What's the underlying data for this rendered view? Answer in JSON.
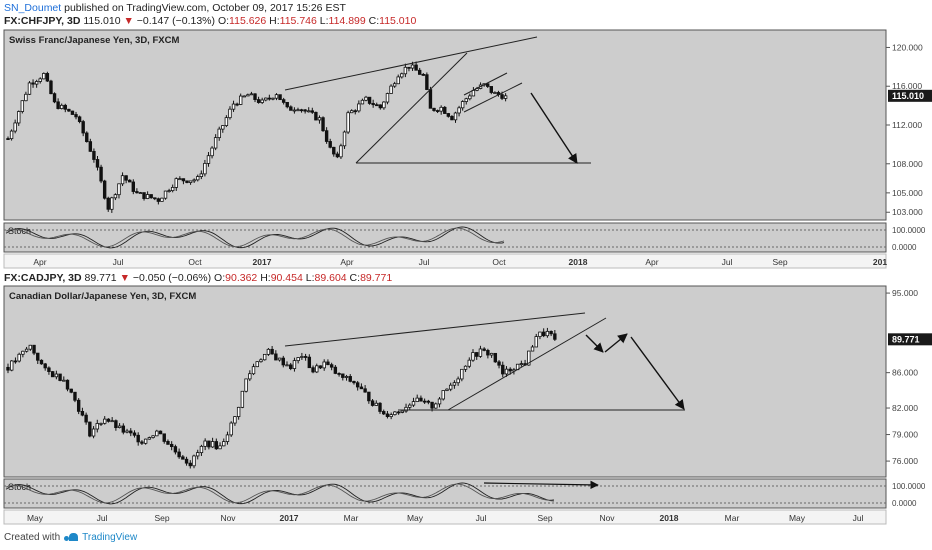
{
  "publish": {
    "user": "SN_Doumet",
    "text": "published on TradingView.com, October 09, 2017 15:26 EST"
  },
  "colors": {
    "plot_bg": "#cdcdcd",
    "candle": "#111111",
    "up_body": "#ffffff",
    "line": "#222222",
    "down_arrow": "#c62828"
  },
  "footer": {
    "created_with": "Created with",
    "brand": "TradingView"
  },
  "chart_data": [
    {
      "type": "candlestick",
      "symbol": "FX:CHFJPY, 3D",
      "last": "115.010",
      "change": "−0.147 (−0.13%)",
      "ohlc": {
        "o": "115.626",
        "h": "115.746",
        "l": "114.899",
        "c": "115.010"
      },
      "title": "Swiss Franc/Japanese Yen, 3D, FXCM",
      "ylim": [
        102.2,
        121.8
      ],
      "y_ticks": [
        "120.000",
        "116.000",
        "112.000",
        "108.000",
        "105.000",
        "103.000"
      ],
      "price_label": "115.010",
      "x_ticks": [
        "Apr",
        "Jul",
        "Oct",
        "2017",
        "Apr",
        "Jul",
        "Oct",
        "2018",
        "Apr",
        "Jul",
        "Sep",
        "201"
      ],
      "path": [
        [
          0,
          110.6
        ],
        [
          6,
          116.3
        ],
        [
          10,
          117.2
        ],
        [
          13,
          114.2
        ],
        [
          19,
          112.9
        ],
        [
          24,
          108.6
        ],
        [
          28,
          103.5
        ],
        [
          32,
          106.8
        ],
        [
          36,
          104.9
        ],
        [
          42,
          104.3
        ],
        [
          47,
          106.3
        ],
        [
          53,
          106.4
        ],
        [
          58,
          110.5
        ],
        [
          63,
          114.2
        ],
        [
          67,
          115.1
        ],
        [
          71,
          114.3
        ],
        [
          75,
          115.3
        ],
        [
          78,
          113.6
        ],
        [
          81,
          113.9
        ],
        [
          84,
          113.2
        ],
        [
          87,
          112.6
        ],
        [
          90,
          109.5
        ],
        [
          92,
          108.4
        ],
        [
          95,
          113.1
        ],
        [
          100,
          114.6
        ],
        [
          104,
          113.8
        ],
        [
          109,
          117.3
        ],
        [
          112,
          118.1
        ],
        [
          116,
          117.1
        ],
        [
          118,
          113.6
        ],
        [
          121,
          113.8
        ],
        [
          124,
          112.8
        ],
        [
          127,
          114.3
        ],
        [
          130,
          115.6
        ],
        [
          133,
          116.1
        ],
        [
          136,
          115.2
        ],
        [
          139,
          115.01
        ]
      ],
      "stoch": {
        "label": "Stoch",
        "scale": [
          "100.0000",
          "0.0000"
        ]
      },
      "annotations": [
        "rising wedge trend lines",
        "horizontal support line",
        "down arrow projection"
      ]
    },
    {
      "type": "candlestick",
      "symbol": "FX:CADJPY, 3D",
      "last": "89.771",
      "change": "−0.050 (−0.06%)",
      "ohlc": {
        "o": "90.362",
        "h": "90.454",
        "l": "89.604",
        "c": "89.771"
      },
      "title": "Canadian Dollar/Japanese Yen, 3D, FXCM",
      "ylim": [
        74.2,
        95.8
      ],
      "y_ticks": [
        "95.000",
        "86.000",
        "82.000",
        "79.000",
        "76.000"
      ],
      "price_label": "89.771",
      "x_ticks": [
        "May",
        "Jul",
        "Sep",
        "Nov",
        "2017",
        "Mar",
        "May",
        "Jul",
        "Sep",
        "Nov",
        "2018",
        "Mar",
        "May",
        "Jul"
      ],
      "path": [
        [
          0,
          86.6
        ],
        [
          6,
          89.0
        ],
        [
          10,
          86.2
        ],
        [
          15,
          85.3
        ],
        [
          18,
          82.9
        ],
        [
          22,
          79.2
        ],
        [
          26,
          80.9
        ],
        [
          30,
          79.6
        ],
        [
          36,
          78.3
        ],
        [
          40,
          79.4
        ],
        [
          45,
          77.1
        ],
        [
          49,
          75.7
        ],
        [
          53,
          78.1
        ],
        [
          57,
          77.6
        ],
        [
          61,
          80.9
        ],
        [
          64,
          85.2
        ],
        [
          67,
          87.4
        ],
        [
          70,
          88.3
        ],
        [
          73,
          87.4
        ],
        [
          76,
          86.7
        ],
        [
          79,
          88.0
        ],
        [
          82,
          86.2
        ],
        [
          85,
          87.1
        ],
        [
          89,
          85.6
        ],
        [
          93,
          84.9
        ],
        [
          97,
          83.1
        ],
        [
          101,
          81.3
        ],
        [
          105,
          81.6
        ],
        [
          109,
          82.9
        ],
        [
          114,
          82.2
        ],
        [
          118,
          84.1
        ],
        [
          121,
          85.6
        ],
        [
          124,
          87.7
        ],
        [
          127,
          88.4
        ],
        [
          130,
          88.1
        ],
        [
          133,
          85.8
        ],
        [
          136,
          86.7
        ],
        [
          139,
          87.1
        ],
        [
          142,
          90.2
        ],
        [
          145,
          90.5
        ],
        [
          147,
          89.77
        ]
      ],
      "stoch": {
        "label": "Stoch",
        "scale": [
          "100.0000",
          "0.0000"
        ]
      },
      "annotations": [
        "rising wedge trend lines",
        "horizontal support line",
        "zig-zag arrow projection"
      ]
    }
  ]
}
